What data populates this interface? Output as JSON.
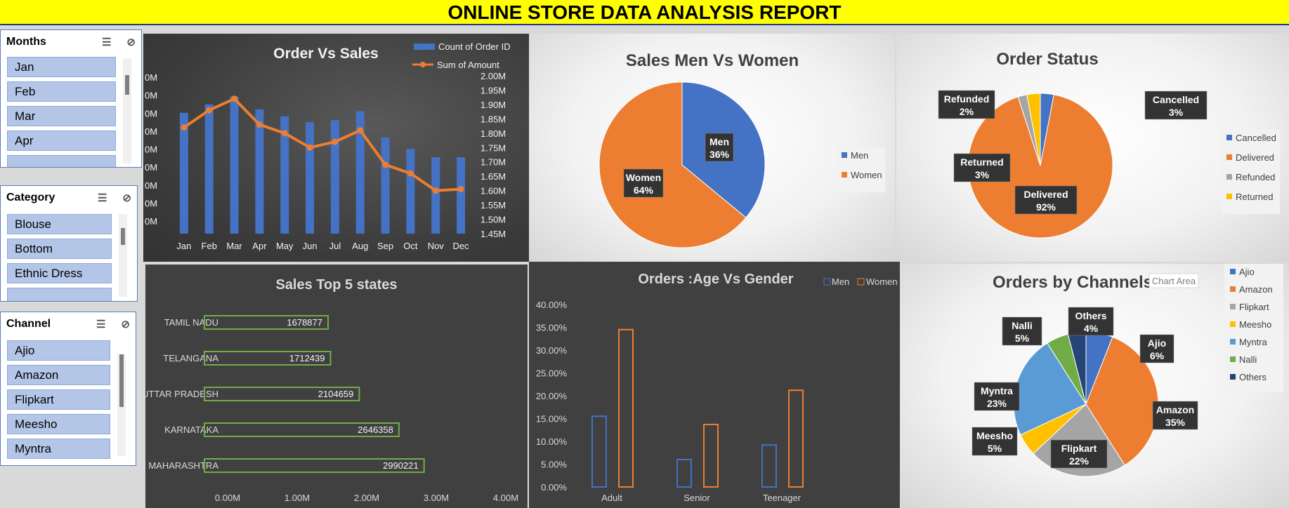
{
  "report_title": "ONLINE STORE DATA ANALYSIS REPORT",
  "slicers": {
    "months": {
      "title": "Months",
      "items": [
        "Jan",
        "Feb",
        "Mar",
        "Apr"
      ]
    },
    "category": {
      "title": "Category",
      "items": [
        "Blouse",
        "Bottom",
        "Ethnic Dress"
      ]
    },
    "channel": {
      "title": "Channel",
      "items": [
        "Ajio",
        "Amazon",
        "Flipkart",
        "Meesho",
        "Myntra"
      ]
    }
  },
  "chart_data": [
    {
      "id": "order_vs_sales",
      "type": "bar",
      "title": "Order Vs Sales",
      "categories": [
        "Jan",
        "Feb",
        "Mar",
        "Apr",
        "May",
        "Jun",
        "Jul",
        "Aug",
        "Sep",
        "Oct",
        "Nov",
        "Dec"
      ],
      "series": [
        {
          "name": "Count of Order ID",
          "type": "bar",
          "values": [
            2.45,
            2.62,
            2.78,
            2.52,
            2.38,
            2.26,
            2.3,
            2.48,
            1.95,
            1.72,
            1.55,
            1.55
          ],
          "color": "#4472c4"
        },
        {
          "name": "Sum of Amount",
          "type": "line",
          "axis": "right",
          "values": [
            1.82,
            1.88,
            1.92,
            1.83,
            1.8,
            1.75,
            1.77,
            1.81,
            1.69,
            1.66,
            1.6,
            1.605
          ],
          "color": "#ed7d31"
        }
      ],
      "left_tick_labels": [
        "0M",
        "0M",
        "0M",
        "0M",
        "0M",
        "0M",
        "0M",
        "0M",
        "0M"
      ],
      "right_ticks": [
        "2.00M",
        "1.95M",
        "1.90M",
        "1.85M",
        "1.80M",
        "1.75M",
        "1.70M",
        "1.65M",
        "1.60M",
        "1.55M",
        "1.50M",
        "1.45M"
      ],
      "right_ylim": [
        1.45,
        2.0
      ],
      "left_ylim": [
        0,
        3.2
      ]
    },
    {
      "id": "sales_gender",
      "type": "pie",
      "title": "Sales Men Vs Women",
      "labels": [
        "Men",
        "Women"
      ],
      "values": [
        36,
        64
      ],
      "data_labels": [
        "36%",
        "64%"
      ],
      "colors": [
        "#4472c4",
        "#ed7d31"
      ],
      "legend": "right"
    },
    {
      "id": "order_status",
      "type": "pie",
      "title": "Order Status",
      "labels": [
        "Cancelled",
        "Delivered",
        "Refunded",
        "Returned"
      ],
      "values": [
        3,
        92,
        2,
        3
      ],
      "data_labels": [
        "3%",
        "92%",
        "2%",
        "3%"
      ],
      "colors": [
        "#4472c4",
        "#ed7d31",
        "#a5a5a5",
        "#ffc000"
      ],
      "legend": "right"
    },
    {
      "id": "top_states",
      "type": "bar",
      "orientation": "horizontal",
      "title": "Sales Top 5 states",
      "categories": [
        "TAMIL NADU",
        "TELANGANA",
        "UTTAR PRADESH",
        "KARNATAKA",
        "MAHARASHTRA"
      ],
      "values": [
        1678877,
        1712439,
        2104659,
        2646358,
        2990221
      ],
      "value_labels": [
        "1678877",
        "1712439",
        "2104659",
        "2646358",
        "2990221"
      ],
      "x_ticks": [
        "0.00M",
        "1.00M",
        "2.00M",
        "3.00M",
        "4.00M"
      ],
      "xlim": [
        0,
        4000000
      ],
      "color": "#70ad47"
    },
    {
      "id": "age_gender",
      "type": "bar",
      "title": "Orders :Age Vs Gender",
      "categories": [
        "Adult",
        "Senior",
        "Teenager"
      ],
      "series": [
        {
          "name": "Men",
          "values": [
            15.5,
            6.0,
            9.2
          ],
          "color": "#4472c4"
        },
        {
          "name": "Women",
          "values": [
            34.5,
            13.7,
            21.2
          ],
          "color": "#ed7d31"
        }
      ],
      "y_ticks": [
        "40.00%",
        "35.00%",
        "30.00%",
        "25.00%",
        "20.00%",
        "15.00%",
        "10.00%",
        "5.00%",
        "0.00%"
      ],
      "ylim": [
        0,
        40
      ]
    },
    {
      "id": "channels",
      "type": "pie",
      "title": "Orders by Channels",
      "overlay_text": "Chart Area",
      "labels": [
        "Ajio",
        "Amazon",
        "Flipkart",
        "Meesho",
        "Myntra",
        "Nalli",
        "Others"
      ],
      "values": [
        6,
        35,
        22,
        5,
        23,
        5,
        4
      ],
      "data_labels": [
        "6%",
        "35%",
        "22%",
        "5%",
        "23%",
        "5%",
        "4%"
      ],
      "colors": [
        "#4472c4",
        "#ed7d31",
        "#a5a5a5",
        "#ffc000",
        "#5b9bd5",
        "#70ad47",
        "#264478"
      ],
      "legend": "right"
    }
  ]
}
